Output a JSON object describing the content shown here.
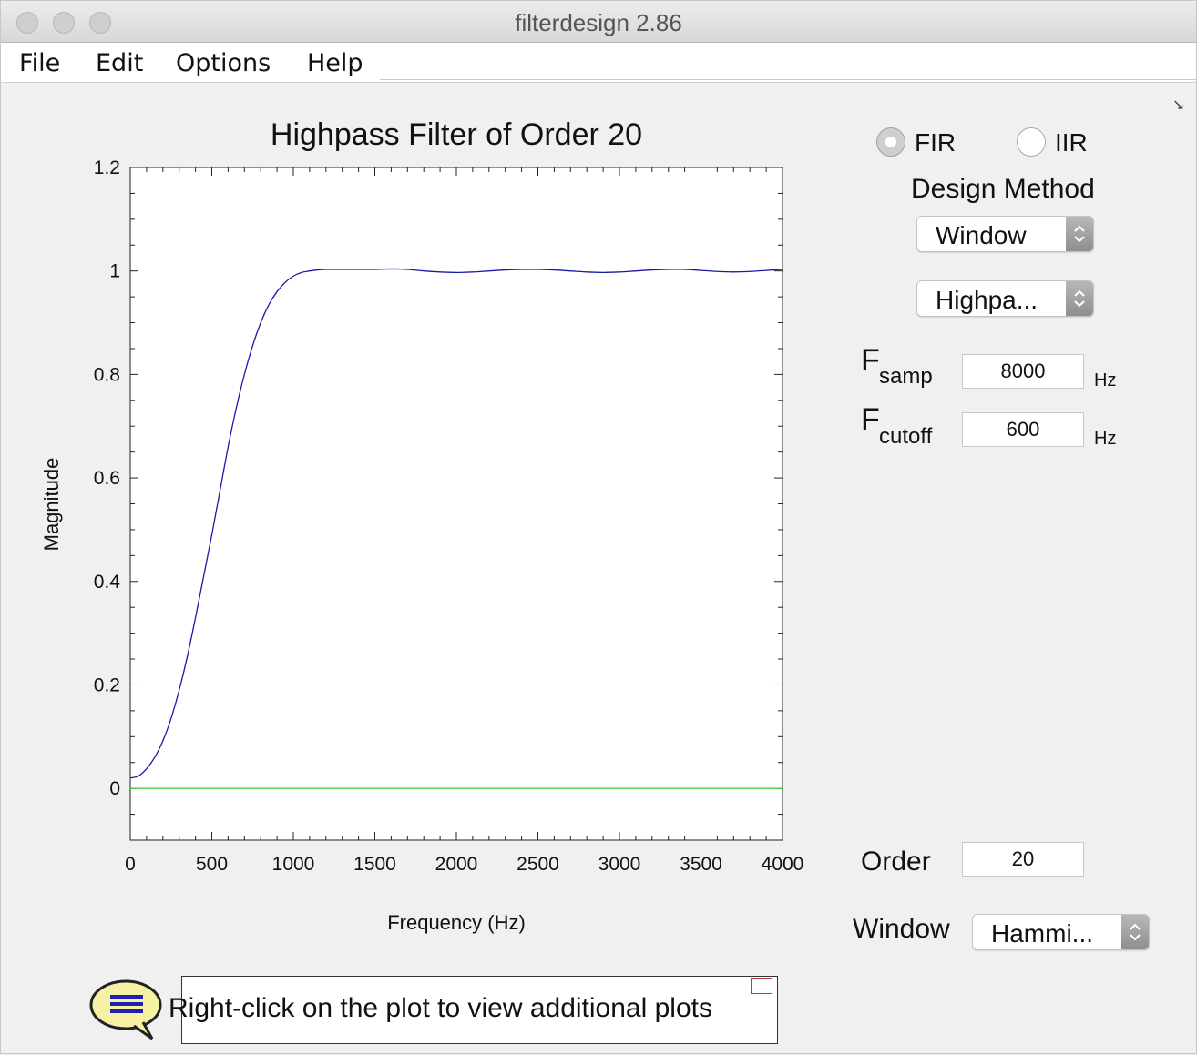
{
  "window": {
    "title": "filterdesign 2.86"
  },
  "menu": [
    "File",
    "Edit",
    "Options",
    "Help"
  ],
  "chart_data": {
    "type": "line",
    "title": "Highpass Filter of Order 20",
    "xlabel": "Frequency (Hz)",
    "ylabel": "Magnitude",
    "xlim": [
      0,
      4000
    ],
    "ylim": [
      -0.1,
      1.2
    ],
    "xticks": [
      0,
      500,
      1000,
      1500,
      2000,
      2500,
      3000,
      3500,
      4000
    ],
    "xtick_labels": [
      "0",
      "500",
      "1000",
      "1500",
      "2000",
      "2500",
      "3000",
      "3500",
      "4000"
    ],
    "yticks": [
      0,
      0.2,
      0.4,
      0.6,
      0.8,
      1,
      1.2
    ],
    "ytick_labels": [
      "0",
      "0.2",
      "0.4",
      "0.6",
      "0.8",
      "1",
      "1.2"
    ],
    "grid": false,
    "series": [
      {
        "color": "#1a1aa6",
        "x": [
          0,
          50,
          100,
          150,
          200,
          250,
          300,
          350,
          400,
          450,
          500,
          550,
          600,
          650,
          700,
          750,
          800,
          850,
          900,
          950,
          1000,
          1050,
          1100,
          1150,
          1200,
          1250,
          1300,
          1400,
          1500,
          1600,
          1700,
          1800,
          1900,
          2000,
          2100,
          2200,
          2300,
          2400,
          2500,
          2600,
          2700,
          2800,
          2900,
          3000,
          3100,
          3200,
          3300,
          3400,
          3500,
          3600,
          3700,
          3800,
          3900,
          4000
        ],
        "y": [
          0.02,
          0.024,
          0.038,
          0.06,
          0.092,
          0.135,
          0.19,
          0.255,
          0.33,
          0.41,
          0.49,
          0.575,
          0.66,
          0.735,
          0.8,
          0.855,
          0.9,
          0.935,
          0.96,
          0.978,
          0.99,
          0.997,
          1.0,
          1.002,
          1.003,
          1.003,
          1.003,
          1.003,
          1.003,
          1.004,
          1.003,
          1.0,
          0.998,
          0.997,
          0.998,
          1.0,
          1.002,
          1.003,
          1.003,
          1.002,
          1.0,
          0.998,
          0.997,
          0.998,
          1.0,
          1.002,
          1.003,
          1.003,
          1.001,
          0.999,
          0.998,
          0.999,
          1.001,
          1.003
        ]
      },
      {
        "color": "#2fd12f",
        "x": [
          0,
          4000
        ],
        "y": [
          0,
          0
        ]
      }
    ]
  },
  "controls": {
    "fir_label": "FIR",
    "iir_label": "IIR",
    "selected_type": "FIR",
    "design_method_label": "Design Method",
    "design_method_value": "Window",
    "filter_type_value": "Highpa...",
    "fsamp_F": "F",
    "fsamp_sub": "samp",
    "fsamp_value": "8000",
    "fsamp_unit": "Hz",
    "fcutoff_F": "F",
    "fcutoff_sub": "cutoff",
    "fcutoff_value": "600",
    "fcutoff_unit": "Hz",
    "order_label": "Order",
    "order_value": "20",
    "window_label": "Window",
    "window_value": "Hammi..."
  },
  "help": {
    "text": "Right-click on the plot to view additional plots"
  }
}
